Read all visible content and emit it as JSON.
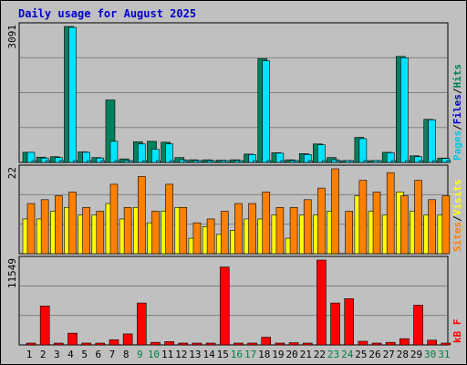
{
  "title": "Daily usage for August 2025",
  "colors": {
    "background": "#c0c0c0",
    "title": "#0000cc",
    "grid": "#808080",
    "hits": "#00805c",
    "files": "#00e4ff",
    "pages": "#00c8e0",
    "visits": "#ffff00",
    "sites": "#ff8000",
    "kbytes": "#ff0000",
    "weekday_label": "#000000",
    "weekend_label": "#008040"
  },
  "chart_data": [
    {
      "type": "bar",
      "panel": "hits-files-pages",
      "ytick_label": "3091",
      "ylim": [
        0,
        3091
      ],
      "right_label": [
        {
          "text": "Pages",
          "color": "#00c8e0"
        },
        {
          "text": "/",
          "color": "#000000"
        },
        {
          "text": "Files",
          "color": "#0000cc"
        },
        {
          "text": "/",
          "color": "#000000"
        },
        {
          "text": "Hits",
          "color": "#00805c"
        }
      ],
      "categories": [
        "1",
        "2",
        "3",
        "4",
        "5",
        "6",
        "7",
        "8",
        "9",
        "10",
        "11",
        "12",
        "13",
        "14",
        "15",
        "16",
        "17",
        "18",
        "19",
        "20",
        "21",
        "22",
        "23",
        "24",
        "25",
        "26",
        "27",
        "28",
        "29",
        "30",
        "31"
      ],
      "series": [
        {
          "name": "Hits",
          "values": [
            230,
            120,
            130,
            3091,
            240,
            110,
            1420,
            80,
            470,
            480,
            460,
            110,
            60,
            60,
            50,
            60,
            190,
            2360,
            220,
            60,
            200,
            420,
            110,
            20,
            570,
            20,
            230,
            2410,
            150,
            980,
            100
          ]
        },
        {
          "name": "Files",
          "values": [
            230,
            100,
            110,
            3070,
            230,
            100,
            480,
            30,
            420,
            300,
            420,
            60,
            30,
            40,
            40,
            40,
            180,
            2310,
            210,
            40,
            180,
            400,
            60,
            10,
            540,
            10,
            220,
            2380,
            130,
            970,
            90
          ]
        },
        {
          "name": "Pages",
          "values": [
            20,
            15,
            15,
            30,
            20,
            15,
            25,
            10,
            20,
            20,
            20,
            10,
            10,
            10,
            10,
            10,
            15,
            30,
            20,
            10,
            15,
            20,
            15,
            5,
            20,
            5,
            20,
            30,
            15,
            25,
            15
          ]
        }
      ]
    },
    {
      "type": "bar",
      "panel": "visits-sites",
      "ytick_label": "22",
      "ylim": [
        0,
        22
      ],
      "right_label": [
        {
          "text": "Sites",
          "color": "#ff8000"
        },
        {
          "text": "/",
          "color": "#000000"
        },
        {
          "text": "Visits",
          "color": "#ffff00"
        }
      ],
      "categories": [
        "1",
        "2",
        "3",
        "4",
        "5",
        "6",
        "7",
        "8",
        "9",
        "10",
        "11",
        "12",
        "13",
        "14",
        "15",
        "16",
        "17",
        "18",
        "19",
        "20",
        "21",
        "22",
        "23",
        "24",
        "25",
        "26",
        "27",
        "28",
        "29",
        "30",
        "31"
      ],
      "series": [
        {
          "name": "Visits",
          "values": [
            9,
            9,
            11,
            12,
            10,
            10,
            13,
            9,
            12,
            8,
            11,
            12,
            4,
            7,
            5,
            6,
            9,
            9,
            10,
            4,
            10,
            10,
            11,
            0,
            15,
            11,
            10,
            16,
            11,
            10,
            10
          ]
        },
        {
          "name": "Sites",
          "values": [
            13,
            14,
            15,
            16,
            12,
            11,
            18,
            12,
            20,
            11,
            18,
            12,
            8,
            9,
            11,
            13,
            13,
            16,
            12,
            12,
            14,
            17,
            22,
            11,
            19,
            16,
            21,
            15,
            19,
            14,
            15
          ]
        }
      ]
    },
    {
      "type": "bar",
      "panel": "kbytes",
      "ytick_label": "11549",
      "ylim": [
        0,
        11549
      ],
      "right_label": [
        {
          "text": "kB F",
          "color": "#ff0000"
        }
      ],
      "categories": [
        "1",
        "2",
        "3",
        "4",
        "5",
        "6",
        "7",
        "8",
        "9",
        "10",
        "11",
        "12",
        "13",
        "14",
        "15",
        "16",
        "17",
        "18",
        "19",
        "20",
        "21",
        "22",
        "23",
        "24",
        "25",
        "26",
        "27",
        "28",
        "29",
        "30",
        "31"
      ],
      "series": [
        {
          "name": "kB F",
          "values": [
            250,
            5300,
            200,
            1600,
            200,
            150,
            700,
            1500,
            5700,
            350,
            450,
            200,
            150,
            150,
            10600,
            150,
            250,
            1050,
            250,
            300,
            150,
            11549,
            5700,
            6300,
            500,
            200,
            350,
            850,
            5400,
            650,
            100
          ]
        }
      ]
    }
  ],
  "x_labels": [
    {
      "day": "1",
      "weekend": false
    },
    {
      "day": "2",
      "weekend": false
    },
    {
      "day": "3",
      "weekend": false
    },
    {
      "day": "4",
      "weekend": false
    },
    {
      "day": "5",
      "weekend": false
    },
    {
      "day": "6",
      "weekend": false
    },
    {
      "day": "7",
      "weekend": false
    },
    {
      "day": "8",
      "weekend": false
    },
    {
      "day": "9",
      "weekend": true
    },
    {
      "day": "10",
      "weekend": true
    },
    {
      "day": "11",
      "weekend": false
    },
    {
      "day": "12",
      "weekend": false
    },
    {
      "day": "13",
      "weekend": false
    },
    {
      "day": "14",
      "weekend": false
    },
    {
      "day": "15",
      "weekend": false
    },
    {
      "day": "16",
      "weekend": true
    },
    {
      "day": "17",
      "weekend": true
    },
    {
      "day": "18",
      "weekend": false
    },
    {
      "day": "19",
      "weekend": false
    },
    {
      "day": "20",
      "weekend": false
    },
    {
      "day": "21",
      "weekend": false
    },
    {
      "day": "22",
      "weekend": false
    },
    {
      "day": "23",
      "weekend": true
    },
    {
      "day": "24",
      "weekend": true
    },
    {
      "day": "25",
      "weekend": false
    },
    {
      "day": "26",
      "weekend": false
    },
    {
      "day": "27",
      "weekend": false
    },
    {
      "day": "28",
      "weekend": false
    },
    {
      "day": "29",
      "weekend": false
    },
    {
      "day": "30",
      "weekend": true
    },
    {
      "day": "31",
      "weekend": true
    }
  ]
}
